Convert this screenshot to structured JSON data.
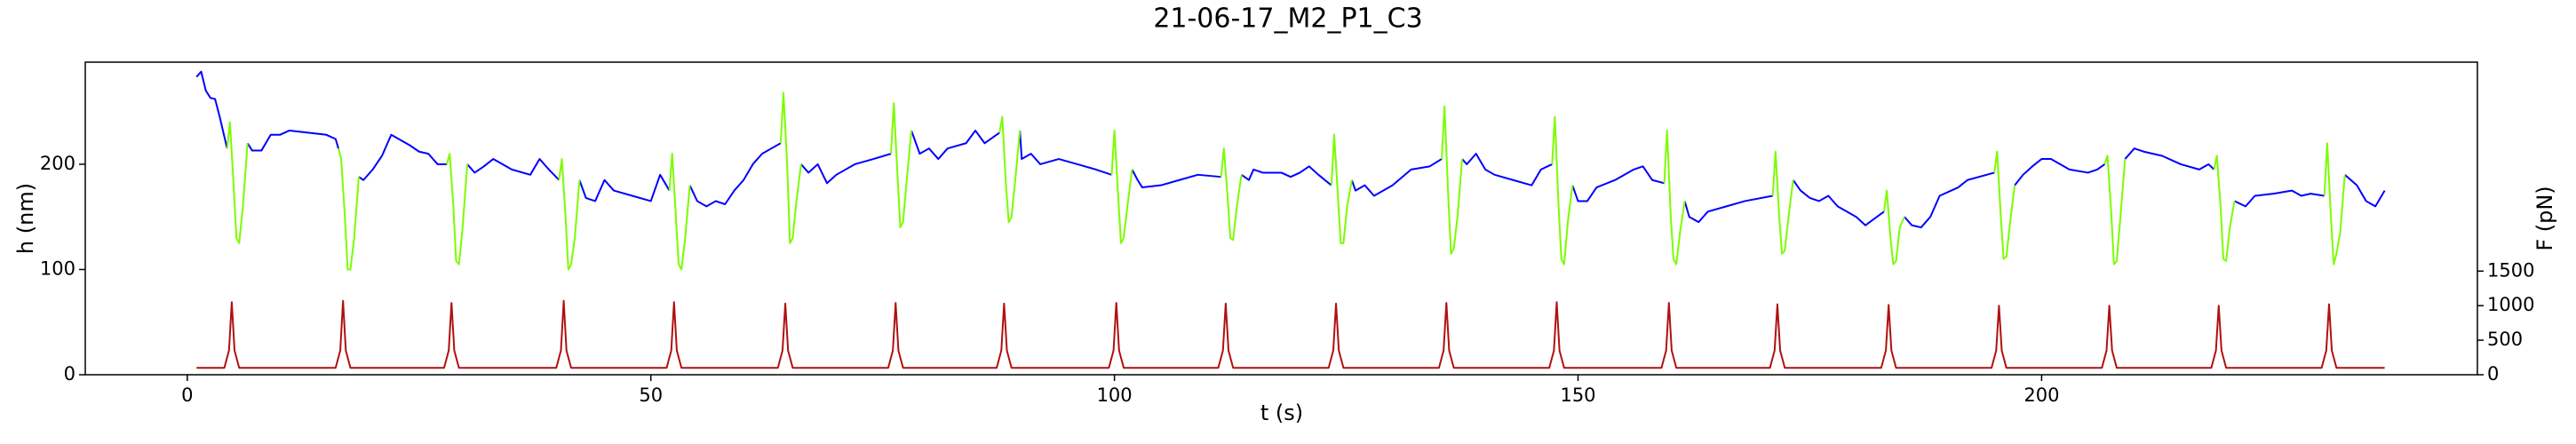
{
  "chart_data": {
    "type": "line",
    "title": "21-06-17_M2_P1_C3",
    "xlabel": "t (s)",
    "ylabel": "h (nm)",
    "y2label": "F (pN)",
    "xlim": [
      -11,
      247
    ],
    "xticks": [
      0,
      50,
      100,
      150,
      200
    ],
    "ylim": [
      0,
      297
    ],
    "yticks": [
      0,
      100,
      200
    ],
    "y2lim": [
      0,
      4524
    ],
    "y2ticks": [
      0,
      500,
      1000,
      1500
    ],
    "grid": false,
    "series": [
      {
        "color": "#0000ff",
        "axis": "y",
        "x": [
          1,
          1.5,
          2,
          2.5,
          3,
          3.5,
          4.3,
          5,
          6.5,
          7,
          8,
          9,
          10,
          11,
          13,
          15,
          16,
          16.3,
          17,
          18.5,
          19,
          20,
          21,
          22,
          24,
          25,
          26,
          27,
          28,
          28.7,
          30.2,
          31,
          32,
          33,
          35,
          37,
          38,
          39,
          40.1,
          40.8,
          42.3,
          43,
          44,
          45,
          46,
          48,
          50,
          51,
          52,
          52.7,
          54.2,
          55,
          56,
          57,
          58,
          59,
          60,
          61,
          62,
          63,
          64,
          64.7,
          66.2,
          67,
          68,
          69,
          70,
          72,
          74,
          75.9,
          76.6,
          78.1,
          79,
          80,
          81,
          82,
          84,
          85,
          86,
          87.6,
          88.3,
          89.8,
          90,
          91,
          92,
          94,
          96,
          98,
          99.7,
          100.4,
          101.9,
          102.5,
          103,
          105,
          107,
          109,
          111.5,
          112.2,
          113.7,
          114.5,
          115,
          116,
          118,
          119,
          120,
          121,
          122,
          123.4,
          124.1,
          125.6,
          126,
          127,
          128,
          130,
          132,
          134,
          135.3,
          136,
          137.5,
          138,
          139,
          140,
          141,
          143,
          145,
          146,
          147.2,
          147.9,
          149.4,
          150,
          151,
          152,
          154,
          156,
          157,
          158,
          159.3,
          160,
          161.5,
          162,
          163,
          164,
          166,
          168,
          171,
          171.7,
          173.2,
          174,
          175,
          176,
          177,
          178,
          180,
          181,
          183,
          183.7,
          185.2,
          186,
          187,
          188,
          189,
          191,
          192,
          194.9,
          195.6,
          197.1,
          198,
          199,
          200,
          201,
          203,
          205,
          206,
          206.8,
          207.5,
          209,
          210,
          211,
          213,
          215,
          217,
          218,
          218.6,
          219.3,
          220.8,
          222,
          223,
          225,
          227,
          228,
          229,
          230.5,
          231.2,
          232.7,
          234,
          235,
          236,
          237
        ],
        "values": [
          283,
          288,
          270,
          263,
          262,
          245,
          215,
          null,
          220,
          213,
          213,
          228,
          228,
          232,
          230,
          228,
          224,
          215,
          null,
          188,
          185,
          195,
          208,
          228,
          218,
          212,
          210,
          200,
          200,
          null,
          200,
          192,
          198,
          205,
          195,
          190,
          205,
          195,
          185,
          null,
          185,
          168,
          165,
          185,
          175,
          170,
          165,
          190,
          175,
          null,
          180,
          165,
          160,
          165,
          162,
          175,
          185,
          200,
          210,
          215,
          220,
          null,
          200,
          192,
          200,
          182,
          190,
          200,
          205,
          210,
          null,
          232,
          210,
          215,
          205,
          215,
          220,
          232,
          220,
          230,
          null,
          232,
          205,
          210,
          200,
          205,
          200,
          195,
          190,
          null,
          195,
          185,
          178,
          180,
          185,
          190,
          188,
          null,
          190,
          185,
          195,
          192,
          192,
          188,
          192,
          198,
          190,
          180,
          null,
          185,
          175,
          180,
          170,
          180,
          195,
          198,
          205,
          null,
          205,
          200,
          210,
          195,
          190,
          185,
          180,
          195,
          200,
          null,
          180,
          165,
          165,
          178,
          185,
          195,
          198,
          185,
          182,
          null,
          165,
          150,
          145,
          155,
          160,
          165,
          170,
          null,
          185,
          175,
          168,
          165,
          170,
          160,
          150,
          142,
          155,
          null,
          150,
          142,
          140,
          150,
          170,
          178,
          185,
          192,
          null,
          180,
          190,
          198,
          205,
          205,
          195,
          192,
          195,
          200,
          null,
          205,
          215,
          212,
          208,
          200,
          195,
          200,
          195,
          null,
          165,
          160,
          170,
          172,
          175,
          170,
          172,
          170,
          null,
          190,
          180,
          165,
          160,
          175
        ]
      },
      {
        "color": "#7cfc00",
        "axis": "y",
        "x": [
          4.3,
          4.6,
          5.0,
          5.3,
          5.6,
          6.0,
          6.5,
          9,
          16.3,
          16.6,
          17.0,
          17.3,
          17.6,
          18.0,
          18.5,
          21,
          28.0,
          28.3,
          28.7,
          29.0,
          29.3,
          29.7,
          30.2,
          33,
          40.1,
          40.4,
          40.8,
          41.1,
          41.4,
          41.8,
          42.3,
          45,
          52.0,
          52.3,
          52.7,
          53.0,
          53.3,
          53.7,
          54.2,
          57,
          64.0,
          64.3,
          64.7,
          65.0,
          65.3,
          65.7,
          66.2,
          69,
          75.9,
          76.2,
          76.6,
          76.9,
          77.2,
          77.6,
          78.1,
          81,
          87.6,
          87.9,
          88.3,
          88.6,
          88.9,
          89.3,
          89.8,
          93,
          99.7,
          100.0,
          100.4,
          100.7,
          101.0,
          101.4,
          101.9,
          105,
          111.5,
          111.8,
          112.2,
          112.5,
          112.8,
          113.2,
          113.7,
          117,
          123.4,
          123.7,
          124.1,
          124.4,
          124.7,
          125.1,
          125.6,
          129,
          135.3,
          135.6,
          136.0,
          136.3,
          136.6,
          137.0,
          137.5,
          141,
          147.2,
          147.5,
          147.9,
          148.2,
          148.5,
          148.9,
          149.4,
          153,
          159.3,
          159.6,
          160.0,
          160.3,
          160.6,
          161.0,
          161.5,
          165,
          171.0,
          171.3,
          171.7,
          172.0,
          172.3,
          172.7,
          173.2,
          177,
          183.0,
          183.3,
          183.7,
          184.0,
          184.3,
          184.7,
          185.2,
          189,
          194.9,
          195.2,
          195.6,
          195.9,
          196.2,
          196.6,
          197.1,
          201,
          206.8,
          207.1,
          207.5,
          207.8,
          208.1,
          208.5,
          209.0,
          213,
          218.6,
          218.9,
          219.3,
          219.6,
          219.9,
          220.3,
          220.8,
          225,
          230.5,
          230.8,
          231.2,
          231.5,
          231.8,
          232.2,
          232.7
        ],
        "values": [
          215,
          240,
          180,
          130,
          125,
          160,
          220,
          null,
          215,
          205,
          150,
          100,
          100,
          130,
          188,
          null,
          200,
          210,
          160,
          108,
          105,
          140,
          200,
          null,
          185,
          205,
          150,
          100,
          105,
          130,
          185,
          null,
          175,
          210,
          150,
          105,
          100,
          130,
          180,
          null,
          220,
          268,
          200,
          125,
          130,
          165,
          200,
          null,
          210,
          258,
          190,
          140,
          145,
          185,
          232,
          null,
          230,
          245,
          180,
          145,
          150,
          185,
          232,
          null,
          190,
          232,
          170,
          125,
          130,
          160,
          195,
          null,
          188,
          215,
          170,
          130,
          128,
          160,
          190,
          null,
          180,
          228,
          170,
          125,
          125,
          160,
          185,
          null,
          205,
          255,
          170,
          115,
          120,
          150,
          205,
          null,
          200,
          245,
          160,
          110,
          105,
          145,
          180,
          null,
          182,
          232,
          150,
          110,
          105,
          135,
          165,
          null,
          170,
          212,
          150,
          115,
          118,
          150,
          185,
          null,
          155,
          175,
          130,
          105,
          108,
          140,
          150,
          null,
          192,
          212,
          150,
          110,
          112,
          145,
          180,
          null,
          200,
          208,
          155,
          105,
          108,
          150,
          205,
          null,
          195,
          208,
          160,
          110,
          108,
          140,
          165,
          null,
          170,
          220,
          150,
          105,
          115,
          135,
          190
        ]
      },
      {
        "color": "#b01010",
        "axis": "y2",
        "x": [
          1,
          4.0,
          4.5,
          4.8,
          5.1,
          5.6,
          16.0,
          16.5,
          16.8,
          17.1,
          17.6,
          27.7,
          28.2,
          28.5,
          28.8,
          29.3,
          39.8,
          40.3,
          40.6,
          40.9,
          41.4,
          51.7,
          52.2,
          52.5,
          52.8,
          53.3,
          63.7,
          64.2,
          64.5,
          64.8,
          65.3,
          75.6,
          76.1,
          76.4,
          76.7,
          77.2,
          87.3,
          87.8,
          88.1,
          88.4,
          88.9,
          99.4,
          99.9,
          100.2,
          100.5,
          101.0,
          111.2,
          111.7,
          112.0,
          112.3,
          112.8,
          123.1,
          123.6,
          123.9,
          124.2,
          124.7,
          135.0,
          135.5,
          135.8,
          136.1,
          136.6,
          146.9,
          147.4,
          147.7,
          148.0,
          148.5,
          159.0,
          159.5,
          159.8,
          160.1,
          160.6,
          170.7,
          171.2,
          171.5,
          171.8,
          172.3,
          182.7,
          183.2,
          183.5,
          183.8,
          184.3,
          194.6,
          195.1,
          195.4,
          195.7,
          196.2,
          206.5,
          207.0,
          207.3,
          207.6,
          208.1,
          218.3,
          218.8,
          219.1,
          219.4,
          219.9,
          230.2,
          230.7,
          231.0,
          231.3,
          231.8,
          237
        ],
        "values": [
          100,
          100,
          350,
          1050,
          350,
          100,
          100,
          350,
          1070,
          350,
          100,
          100,
          350,
          1040,
          350,
          100,
          100,
          350,
          1070,
          350,
          100,
          100,
          350,
          1050,
          350,
          100,
          100,
          350,
          1030,
          350,
          100,
          100,
          350,
          1040,
          350,
          100,
          100,
          350,
          1030,
          350,
          100,
          100,
          350,
          1040,
          350,
          100,
          100,
          350,
          1030,
          350,
          100,
          100,
          350,
          1030,
          350,
          100,
          100,
          350,
          1040,
          350,
          100,
          100,
          350,
          1050,
          350,
          100,
          100,
          350,
          1040,
          350,
          100,
          100,
          350,
          1020,
          350,
          100,
          100,
          350,
          1010,
          350,
          100,
          100,
          350,
          1000,
          350,
          100,
          100,
          350,
          1000,
          350,
          100,
          100,
          350,
          1000,
          350,
          100,
          100,
          350,
          1020,
          350,
          100,
          100
        ]
      }
    ]
  }
}
